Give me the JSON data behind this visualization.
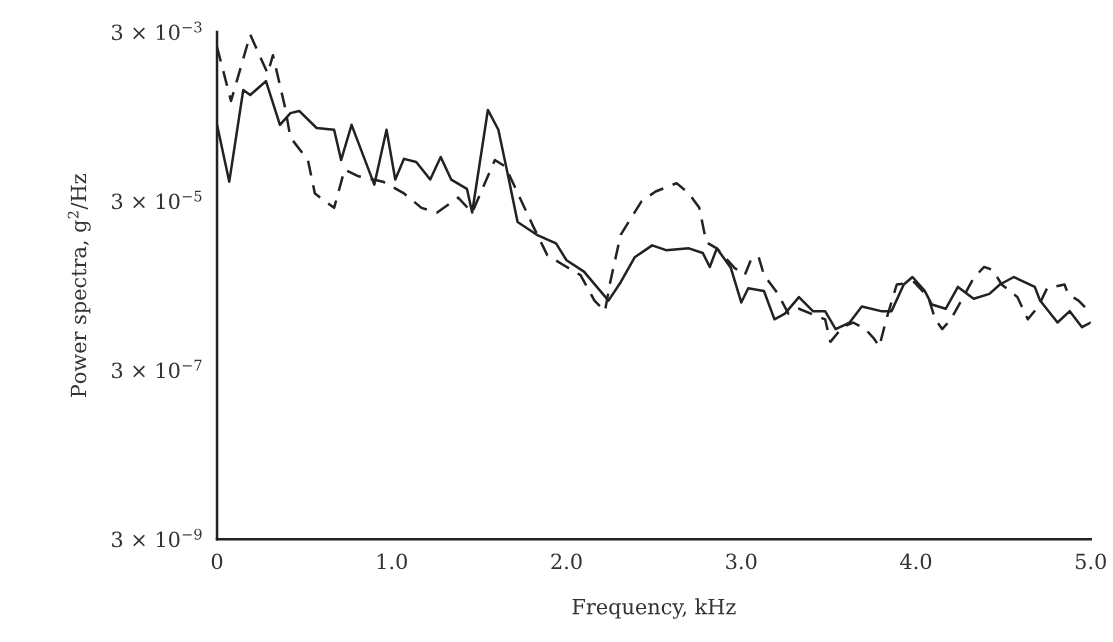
{
  "chart_data": {
    "type": "line",
    "xlabel": "Frequency, kHz",
    "ylabel": "Power spectra, g$^{2}$/Hz",
    "log": "y",
    "grid": false,
    "legend": false,
    "xlim": [
      0,
      5
    ],
    "xticks": [
      0,
      {
        "value": 1,
        "label": "1.0"
      },
      {
        "value": 2,
        "label": "2.0"
      },
      {
        "value": 3,
        "label": "3.0"
      },
      {
        "value": 4,
        "label": "4.0"
      },
      {
        "value": 5,
        "label": "5.0"
      }
    ],
    "ylim": [
      3e-09,
      0.003
    ],
    "yticks": [
      {
        "value": 3e-09,
        "label": "3 × 10$^{−9}$"
      },
      {
        "value": 3e-07,
        "label": "3 × 10$^{−7}$"
      },
      {
        "value": 3e-05,
        "label": "3 × 10$^{−5}$"
      },
      {
        "value": 0.003,
        "label": "3 × 10$^{−3}$"
      }
    ],
    "series": [
      {
        "color": "#222222",
        "line_style": "solid",
        "x": [
          0.0,
          0.07,
          0.15,
          0.19,
          0.28,
          0.36,
          0.42,
          0.47,
          0.57,
          0.67,
          0.71,
          0.77,
          0.9,
          0.97,
          1.02,
          1.07,
          1.14,
          1.22,
          1.28,
          1.34,
          1.43,
          1.46,
          1.55,
          1.61,
          1.67,
          1.72,
          1.83,
          1.94,
          2.0,
          2.1,
          2.24,
          2.31,
          2.39,
          2.49,
          2.57,
          2.7,
          2.78,
          2.82,
          2.86,
          2.94,
          3.0,
          3.04,
          3.13,
          3.19,
          3.25,
          3.33,
          3.41,
          3.48,
          3.54,
          3.62,
          3.69,
          3.8,
          3.86,
          3.93,
          3.98,
          4.05,
          4.09,
          4.17,
          4.24,
          4.33,
          4.42,
          4.48,
          4.56,
          4.68,
          4.71,
          4.81,
          4.88,
          4.95,
          5.0
        ],
        "values": [
          0.00024,
          5.1e-05,
          0.00062,
          0.00054,
          0.00079,
          0.00024,
          0.00033,
          0.00035,
          0.00022,
          0.00021,
          9.2e-05,
          0.00024,
          4.7e-05,
          0.00021,
          5.4e-05,
          9.5e-05,
          8.7e-05,
          5.4e-05,
          0.0001,
          5.4e-05,
          4.2e-05,
          2.2e-05,
          0.00036,
          0.00021,
          5.4e-05,
          1.7e-05,
          1.2e-05,
          9.5e-06,
          6e-06,
          4.4e-06,
          2e-06,
          3.3e-06,
          6.5e-06,
          9e-06,
          7.9e-06,
          8.3e-06,
          7.3e-06,
          5e-06,
          8.3e-06,
          4.9e-06,
          1.9e-06,
          2.8e-06,
          2.6e-06,
          1.2e-06,
          1.4e-06,
          2.2e-06,
          1.5e-06,
          1.5e-06,
          9.2e-07,
          1.1e-06,
          1.7e-06,
          1.5e-06,
          1.5e-06,
          3.1e-06,
          3.8e-06,
          2.6e-06,
          1.8e-06,
          1.6e-06,
          2.9e-06,
          2.1e-06,
          2.4e-06,
          3.1e-06,
          3.8e-06,
          2.9e-06,
          2e-06,
          1.1e-06,
          1.5e-06,
          9.7e-07,
          1.1e-06
        ]
      },
      {
        "color": "#222222",
        "line_style": "dashed",
        "x": [
          0.0,
          0.08,
          0.19,
          0.29,
          0.32,
          0.39,
          0.42,
          0.52,
          0.56,
          0.67,
          0.73,
          0.81,
          0.95,
          1.07,
          1.17,
          1.26,
          1.38,
          1.46,
          1.59,
          1.65,
          1.81,
          1.89,
          1.98,
          2.08,
          2.16,
          2.22,
          2.25,
          2.31,
          2.43,
          2.51,
          2.63,
          2.7,
          2.76,
          2.8,
          2.86,
          2.96,
          3.02,
          3.06,
          3.1,
          3.13,
          3.21,
          3.27,
          3.33,
          3.48,
          3.51,
          3.58,
          3.64,
          3.71,
          3.76,
          3.79,
          3.83,
          3.89,
          3.99,
          4.07,
          4.11,
          4.15,
          4.2,
          4.27,
          4.33,
          4.39,
          4.44,
          4.49,
          4.58,
          4.64,
          4.7,
          4.75,
          4.85,
          4.87,
          4.93,
          4.99
        ],
        "values": [
          0.002,
          0.00046,
          0.0028,
          0.00097,
          0.0016,
          0.00038,
          0.00017,
          9.2e-05,
          3.7e-05,
          2.5e-05,
          7.1e-05,
          5.9e-05,
          5.1e-05,
          3.7e-05,
          2.5e-05,
          2.2e-05,
          3.3e-05,
          2.2e-05,
          9.2e-05,
          7.7e-05,
          1.5e-05,
          6.9e-06,
          5.3e-06,
          4e-06,
          2e-06,
          1.5e-06,
          3.3e-06,
          1.2e-05,
          3e-05,
          3.9e-05,
          4.9e-05,
          3.7e-05,
          2.5e-05,
          9.8e-06,
          8.3e-06,
          4.9e-06,
          4e-06,
          6.4e-06,
          6.5e-06,
          4e-06,
          2.4e-06,
          1.4e-06,
          1.6e-06,
          1.2e-06,
          6.5e-07,
          9.7e-07,
          1.1e-06,
          9.2e-07,
          7.1e-07,
          5.7e-07,
          1.2e-06,
          3.1e-06,
          3.3e-06,
          2.2e-06,
          1.2e-06,
          9.2e-07,
          1.2e-06,
          2.2e-06,
          3.7e-06,
          5e-06,
          4.6e-06,
          3.1e-06,
          2.2e-06,
          1.2e-06,
          1.7e-06,
          2.8e-06,
          3.1e-06,
          2.4e-06,
          2e-06,
          1.5e-06
        ]
      }
    ]
  }
}
